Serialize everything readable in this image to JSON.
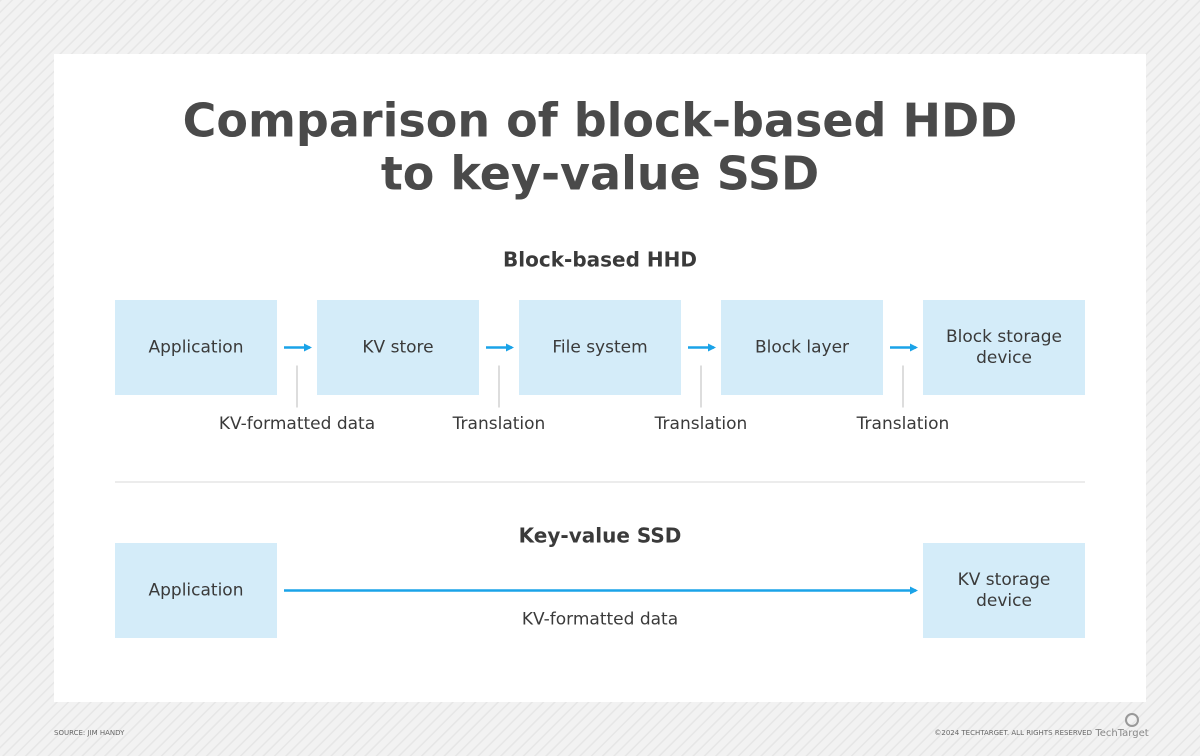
{
  "title": [
    "Comparison of block-based HDD",
    "to key-value SSD"
  ],
  "sections": [
    {
      "heading": "Block-based HHD",
      "nodes": [
        {
          "label": [
            "Application"
          ]
        },
        {
          "label": [
            "KV store"
          ]
        },
        {
          "label": [
            "File system"
          ]
        },
        {
          "label": [
            "Block layer"
          ]
        },
        {
          "label": [
            "Block storage",
            "device"
          ]
        }
      ],
      "edges": [
        "KV-formatted data",
        "Translation",
        "Translation",
        "Translation"
      ]
    },
    {
      "heading": "Key-value SSD",
      "nodes": [
        {
          "label": [
            "Application"
          ]
        },
        {
          "label": [
            "KV storage",
            "device"
          ]
        }
      ],
      "edges": [
        "KV-formatted data"
      ]
    }
  ],
  "footer": {
    "source": "SOURCE: JIM HANDY",
    "copyright": "©2024 TECHTARGET. ALL RIGHTS RESERVED",
    "logo": "TechTarget"
  }
}
